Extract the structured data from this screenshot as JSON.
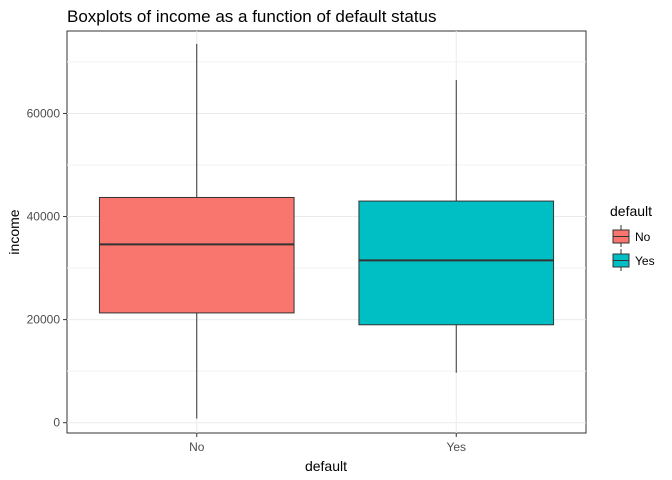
{
  "chart_data": {
    "type": "boxplot",
    "title": "Boxplots of income as a function of default status",
    "xlabel": "default",
    "ylabel": "income",
    "ylim": [
      -2000,
      76000
    ],
    "yticks": [
      0,
      20000,
      40000,
      60000
    ],
    "ytick_labels": [
      "0",
      "20000",
      "40000",
      "60000"
    ],
    "grid": true,
    "legend": {
      "title": "default",
      "placement": "right"
    },
    "categories": [
      "No",
      "Yes"
    ],
    "series": [
      {
        "name": "No",
        "color": "#F8766D",
        "whisker_low": 800,
        "q1": 21300,
        "median": 34600,
        "q3": 43700,
        "whisker_high": 73500
      },
      {
        "name": "Yes",
        "color": "#00BFC4",
        "whisker_low": 9700,
        "q1": 19000,
        "median": 31500,
        "q3": 43000,
        "whisker_high": 66500
      }
    ]
  }
}
